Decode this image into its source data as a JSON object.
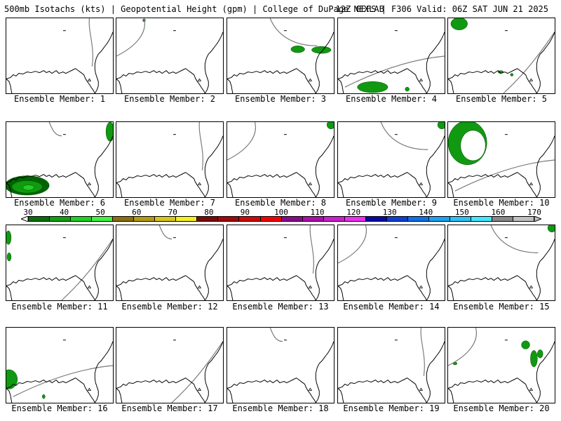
{
  "header": {
    "left": "500mb Isotachs (kts) | Geopotential Height (gpm) | College of DuPage NEXLAB",
    "right": "12Z GEFS | F306 Valid: 06Z SAT JUN 21 2025"
  },
  "panels": [
    {
      "label": "Ensemble Member: 1",
      "wind": "none"
    },
    {
      "label": "Ensemble Member: 2",
      "wind": "trace"
    },
    {
      "label": "Ensemble Member: 3",
      "wind": "southeast-us"
    },
    {
      "label": "Ensemble Member: 4",
      "wind": "gulf"
    },
    {
      "label": "Ensemble Member: 5",
      "wind": "northwest-corner"
    },
    {
      "label": "Ensemble Member: 6",
      "wind": "southwest-gulf"
    },
    {
      "label": "Ensemble Member: 7",
      "wind": "none"
    },
    {
      "label": "Ensemble Member: 8",
      "wind": "northeast-corner"
    },
    {
      "label": "Ensemble Member: 9",
      "wind": "northeast-corner"
    },
    {
      "label": "Ensemble Member: 10",
      "wind": "central-us-ring"
    },
    {
      "label": "Ensemble Member: 11",
      "wind": "western-edge"
    },
    {
      "label": "Ensemble Member: 12",
      "wind": "none"
    },
    {
      "label": "Ensemble Member: 13",
      "wind": "none"
    },
    {
      "label": "Ensemble Member: 14",
      "wind": "none"
    },
    {
      "label": "Ensemble Member: 15",
      "wind": "northeast-corner"
    },
    {
      "label": "Ensemble Member: 16",
      "wind": "southwest-corner"
    },
    {
      "label": "Ensemble Member: 17",
      "wind": "none"
    },
    {
      "label": "Ensemble Member: 18",
      "wind": "none"
    },
    {
      "label": "Ensemble Member: 19",
      "wind": "none"
    },
    {
      "label": "Ensemble Member: 20",
      "wind": "east-coast"
    }
  ],
  "colorbar": {
    "ticks": [
      "30",
      "40",
      "50",
      "60",
      "70",
      "80",
      "90",
      "100",
      "110",
      "120",
      "130",
      "140",
      "150",
      "160",
      "170"
    ],
    "colors": [
      "#0a6e0a",
      "#11a011",
      "#22d022",
      "#44f044",
      "#8c6e10",
      "#b49a14",
      "#d8c61a",
      "#f4f020",
      "#7a0a0a",
      "#a00a0a",
      "#cc0a0a",
      "#f00000",
      "#8a0a8a",
      "#aa10aa",
      "#cc20cc",
      "#ee30ee",
      "#0a0aa0",
      "#1040d0",
      "#1070e8",
      "#20a0f0",
      "#30c0f8",
      "#40e8ff",
      "#888888",
      "#c0c0c0"
    ],
    "units": "kts"
  }
}
